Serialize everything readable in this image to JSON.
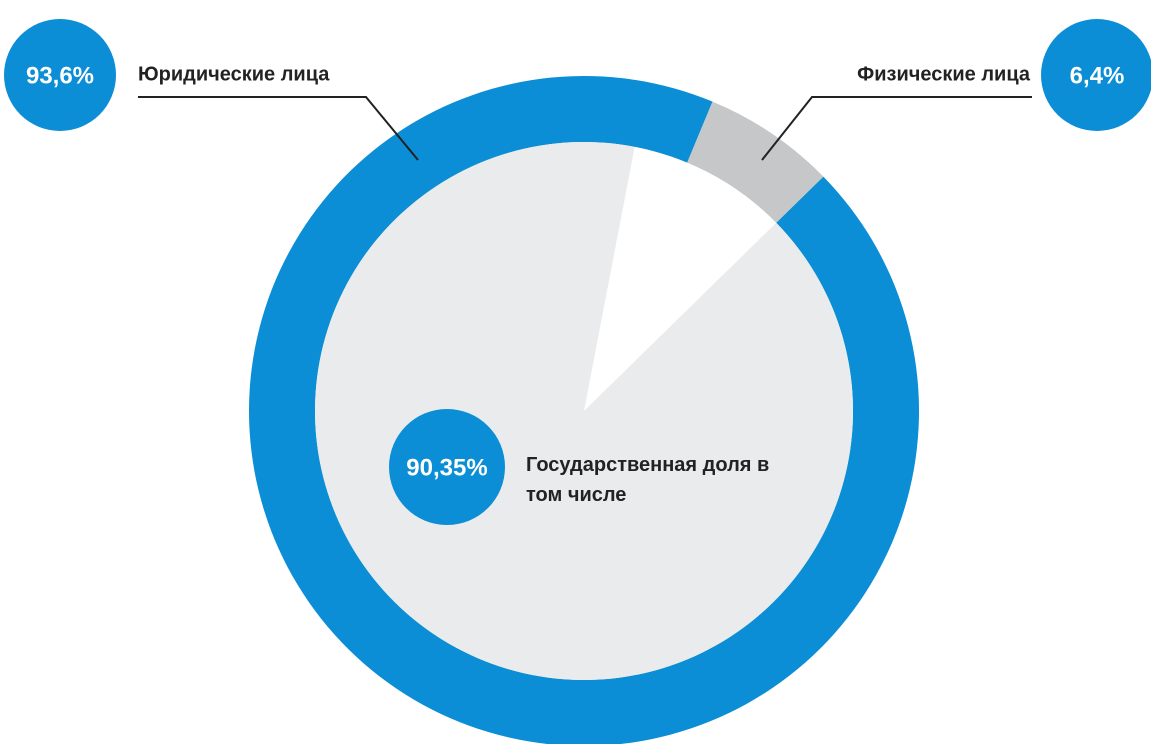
{
  "chart_data": [
    {
      "type": "donut",
      "categories": [
        "Юридические лица",
        "Физические лица"
      ],
      "values": [
        93.6,
        6.4
      ],
      "value_labels": [
        "93,6%",
        "6,4%"
      ],
      "colors": [
        "#0b8ed5",
        "#c5c7c8"
      ]
    },
    {
      "type": "pie",
      "categories": [
        "Государственная доля в том числе"
      ],
      "values": [
        90.35
      ],
      "value_labels": [
        "90,35%"
      ],
      "colors": [
        "#e9ebec"
      ]
    }
  ]
}
